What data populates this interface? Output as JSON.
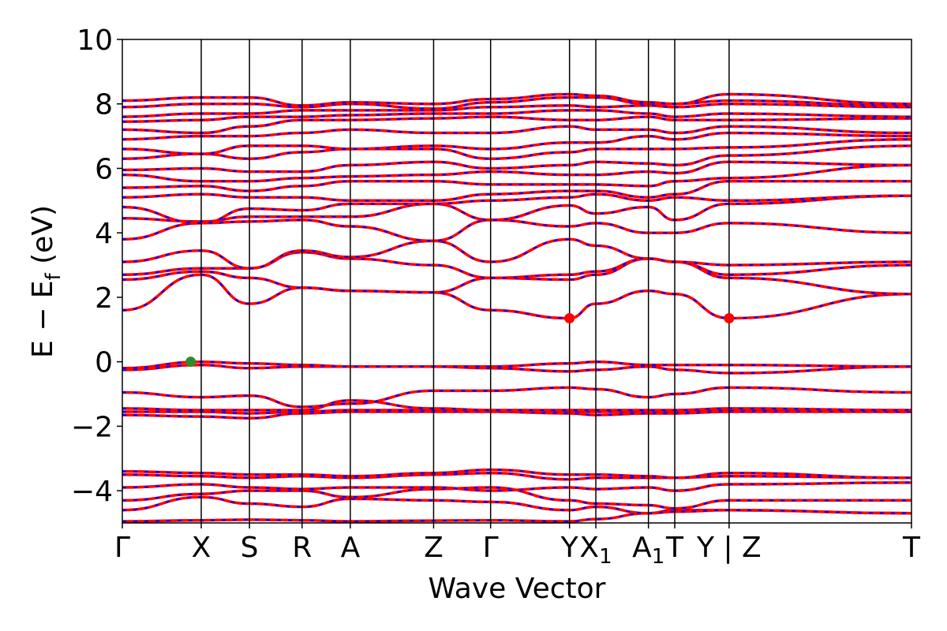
{
  "chart_data": {
    "type": "line",
    "title": "",
    "xlabel": "Wave Vector",
    "ylabel_parts": [
      "E − E",
      "f",
      " (eV)"
    ],
    "ylim": [
      -5,
      10
    ],
    "yticks": [
      {
        "value": 10,
        "label": "10"
      },
      {
        "value": 8,
        "label": "8"
      },
      {
        "value": 6,
        "label": "6"
      },
      {
        "value": 4,
        "label": "4"
      },
      {
        "value": 2,
        "label": "2"
      },
      {
        "value": 0,
        "label": "0"
      },
      {
        "value": -2,
        "label": "−2"
      },
      {
        "value": -4,
        "label": "−4"
      }
    ],
    "xlim": [
      0,
      9.0
    ],
    "kpoints": [
      {
        "x": 0.0,
        "label": "Γ",
        "sub": ""
      },
      {
        "x": 0.9,
        "label": "X",
        "sub": ""
      },
      {
        "x": 1.45,
        "label": "S",
        "sub": ""
      },
      {
        "x": 2.05,
        "label": "R",
        "sub": ""
      },
      {
        "x": 2.6,
        "label": "A",
        "sub": ""
      },
      {
        "x": 3.55,
        "label": "Z",
        "sub": ""
      },
      {
        "x": 4.2,
        "label": "Γ",
        "sub": ""
      },
      {
        "x": 5.1,
        "label": "Y",
        "sub": ""
      },
      {
        "x": 5.4,
        "label": "X",
        "sub": "1"
      },
      {
        "x": 6.0,
        "label": "A",
        "sub": "1"
      },
      {
        "x": 6.3,
        "label": "T",
        "sub": ""
      },
      {
        "x": 6.92,
        "label": "Y | Z",
        "sub": ""
      },
      {
        "x": 9.0,
        "label": "T",
        "sub": ""
      }
    ],
    "series_colors": {
      "up": "#ff0000",
      "down": "#0000ff"
    },
    "markers": [
      {
        "name": "VBM",
        "x": 0.78,
        "y": 0.0,
        "color": "#2e8b2e"
      },
      {
        "name": "CBM",
        "x": 5.1,
        "y": 1.35,
        "color": "#ff0000"
      },
      {
        "name": "CBM",
        "x": 6.92,
        "y": 1.35,
        "color": "#ff0000"
      }
    ],
    "bands": [
      {
        "y": [
          -4.95,
          -4.92,
          -4.9,
          -4.92,
          -4.95,
          -4.93,
          -4.92,
          -4.95,
          -4.88,
          -4.7,
          -4.6,
          -4.6,
          -4.7
        ]
      },
      {
        "y": [
          -4.6,
          -4.2,
          -4.4,
          -4.5,
          -4.25,
          -4.3,
          -4.35,
          -4.6,
          -4.5,
          -4.7,
          -4.65,
          -4.6,
          -4.7
        ]
      },
      {
        "y": [
          -4.3,
          -4.1,
          -4.0,
          -4.0,
          -4.2,
          -3.95,
          -3.9,
          -4.3,
          -4.4,
          -4.45,
          -4.55,
          -4.3,
          -4.3
        ]
      },
      {
        "y": [
          -3.9,
          -3.8,
          -3.9,
          -3.95,
          -3.9,
          -3.9,
          -4.0,
          -3.9,
          -3.95,
          -3.9,
          -4.0,
          -3.8,
          -3.75
        ]
      },
      {
        "y": [
          -3.5,
          -3.55,
          -3.6,
          -3.55,
          -3.6,
          -3.5,
          -3.45,
          -3.65,
          -3.6,
          -3.6,
          -3.6,
          -3.55,
          -3.6
        ]
      },
      {
        "y": [
          -3.4,
          -3.45,
          -3.5,
          -3.5,
          -3.55,
          -3.45,
          -3.35,
          -3.5,
          -3.5,
          -3.55,
          -3.6,
          -3.45,
          -3.6
        ]
      },
      {
        "y": [
          -1.65,
          -1.7,
          -1.75,
          -1.6,
          -1.55,
          -1.55,
          -1.55,
          -1.6,
          -1.65,
          -1.6,
          -1.6,
          -1.55,
          -1.55
        ]
      },
      {
        "y": [
          -1.55,
          -1.55,
          -1.6,
          -1.55,
          -1.5,
          -1.5,
          -1.52,
          -1.55,
          -1.55,
          -1.55,
          -1.55,
          -1.5,
          -1.55
        ]
      },
      {
        "y": [
          -1.45,
          -1.5,
          -1.5,
          -1.5,
          -1.2,
          -1.45,
          -1.5,
          -1.5,
          -1.5,
          -1.5,
          -1.5,
          -1.45,
          -1.5
        ]
      },
      {
        "y": [
          -0.95,
          -1.1,
          -1.05,
          -1.4,
          -1.3,
          -0.9,
          -0.9,
          -0.8,
          -0.85,
          -1.1,
          -1.0,
          -0.8,
          -0.95
        ]
      },
      {
        "y": [
          -0.25,
          -0.1,
          -0.2,
          -0.15,
          -0.15,
          -0.15,
          -0.2,
          -0.3,
          -0.25,
          -0.15,
          -0.25,
          -0.35,
          -0.15
        ]
      },
      {
        "y": [
          -0.2,
          0.0,
          -0.05,
          -0.1,
          -0.15,
          -0.15,
          -0.15,
          -0.05,
          0.0,
          -0.1,
          -0.1,
          -0.1,
          -0.15
        ]
      },
      {
        "y": [
          1.6,
          2.7,
          1.8,
          2.3,
          2.2,
          2.15,
          1.6,
          1.35,
          1.8,
          2.2,
          2.1,
          1.35,
          2.1
        ]
      },
      {
        "y": [
          2.55,
          2.8,
          2.6,
          2.3,
          2.2,
          2.15,
          2.6,
          2.55,
          2.7,
          3.2,
          3.1,
          2.6,
          2.1
        ]
      },
      {
        "y": [
          2.7,
          2.9,
          2.9,
          3.4,
          3.2,
          3.0,
          2.6,
          2.7,
          2.8,
          3.2,
          3.1,
          2.7,
          3.0
        ]
      },
      {
        "y": [
          3.1,
          3.45,
          2.9,
          3.45,
          3.25,
          3.75,
          3.1,
          3.8,
          3.6,
          3.2,
          3.1,
          3.0,
          3.1
        ]
      },
      {
        "y": [
          3.8,
          4.3,
          4.35,
          4.4,
          4.2,
          3.75,
          4.4,
          4.2,
          4.3,
          4.0,
          4.0,
          4.3,
          4.0
        ]
      },
      {
        "y": [
          4.45,
          4.35,
          4.5,
          4.5,
          4.5,
          4.9,
          4.4,
          4.85,
          4.6,
          4.8,
          4.4,
          4.9,
          5.15
        ]
      },
      {
        "y": [
          4.8,
          4.3,
          4.75,
          4.7,
          4.9,
          4.9,
          5.0,
          5.1,
          5.2,
          5.0,
          5.1,
          5.0,
          5.15
        ]
      },
      {
        "y": [
          5.1,
          5.2,
          5.1,
          5.1,
          5.0,
          5.0,
          5.2,
          5.3,
          5.3,
          5.1,
          5.2,
          5.6,
          5.6
        ]
      },
      {
        "y": [
          5.4,
          5.45,
          5.3,
          5.45,
          5.6,
          5.6,
          5.5,
          5.5,
          5.5,
          5.45,
          5.6,
          5.7,
          6.1
        ]
      },
      {
        "y": [
          5.8,
          5.6,
          5.6,
          5.7,
          5.75,
          5.8,
          5.9,
          5.8,
          5.8,
          5.9,
          5.85,
          6.2,
          6.1
        ]
      },
      {
        "y": [
          5.95,
          6.0,
          5.9,
          5.9,
          6.1,
          6.2,
          6.0,
          6.1,
          6.2,
          6.15,
          6.1,
          6.4,
          6.7
        ]
      },
      {
        "y": [
          6.3,
          6.45,
          6.3,
          6.5,
          6.6,
          6.6,
          6.3,
          6.5,
          6.6,
          6.6,
          6.6,
          6.65,
          6.9
        ]
      },
      {
        "y": [
          6.6,
          6.45,
          6.7,
          6.7,
          6.6,
          6.7,
          6.6,
          6.8,
          6.8,
          7.0,
          6.9,
          7.1,
          7.0
        ]
      },
      {
        "y": [
          6.9,
          7.0,
          7.0,
          7.1,
          7.2,
          7.1,
          7.1,
          7.3,
          7.2,
          7.2,
          7.1,
          7.3,
          7.1
        ]
      },
      {
        "y": [
          7.2,
          7.1,
          7.3,
          7.5,
          7.5,
          7.55,
          7.6,
          7.5,
          7.5,
          7.6,
          7.5,
          7.5,
          7.55
        ]
      },
      {
        "y": [
          7.45,
          7.5,
          7.6,
          7.6,
          7.65,
          7.7,
          7.7,
          7.8,
          7.8,
          7.7,
          7.6,
          7.7,
          7.6
        ]
      },
      {
        "y": [
          7.6,
          7.7,
          7.7,
          7.8,
          7.8,
          7.8,
          7.9,
          7.95,
          7.9,
          7.95,
          7.9,
          8.0,
          7.9
        ]
      },
      {
        "y": [
          7.9,
          8.0,
          8.0,
          7.9,
          8.0,
          7.85,
          8.05,
          8.2,
          8.2,
          8.0,
          8.0,
          8.1,
          7.95
        ]
      },
      {
        "y": [
          8.1,
          8.2,
          8.2,
          7.95,
          8.05,
          8.0,
          8.15,
          8.3,
          8.25,
          8.05,
          8.0,
          8.3,
          8.0
        ]
      }
    ]
  }
}
